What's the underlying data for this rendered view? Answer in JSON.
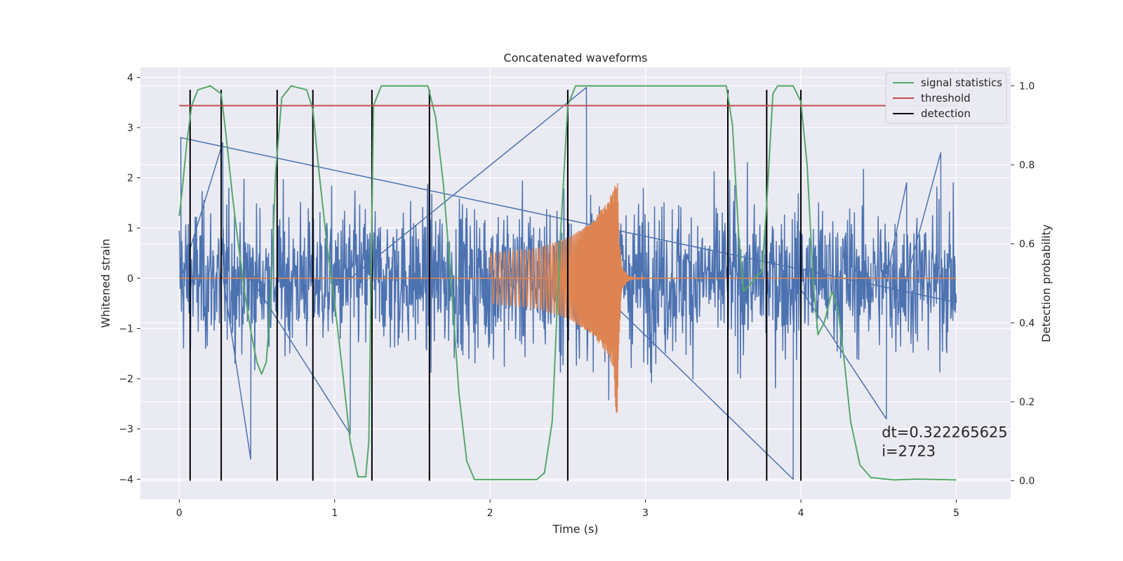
{
  "chart_data": {
    "type": "line",
    "title": "Concatenated waveforms",
    "xlabel": "Time (s)",
    "ylabel": "Whitened strain",
    "y2label": "Detection probability",
    "xlim": [
      -0.25,
      5.35
    ],
    "ylim": [
      -4.4,
      4.2
    ],
    "y2lim": [
      -0.047,
      1.047
    ],
    "xticks": [
      0,
      1,
      2,
      3,
      4,
      5
    ],
    "xtick_labels": [
      "0",
      "1",
      "2",
      "3",
      "4",
      "5"
    ],
    "yticks": [
      4,
      3,
      2,
      1,
      0,
      -1,
      -2,
      -3,
      -4
    ],
    "ytick_labels": [
      "4",
      "3",
      "2",
      "1",
      "0",
      "−1",
      "−2",
      "−3",
      "−4"
    ],
    "y2ticks": [
      1.0,
      0.8,
      0.6,
      0.4,
      0.2,
      0.0
    ],
    "y2tick_labels": [
      "1.0",
      "0.8",
      "0.6",
      "0.4",
      "0.2",
      "0.0"
    ],
    "grid": true,
    "legend_position": "top-right",
    "legend": [
      {
        "label": "signal statistics",
        "color": "#55a868"
      },
      {
        "label": "threshold",
        "color": "#c44e52"
      },
      {
        "label": "detection",
        "color": "#000000"
      }
    ],
    "series": [
      {
        "name": "",
        "axis": "left",
        "color": "#4c72b0",
        "kind": "noise",
        "x_range": [
          0,
          5
        ],
        "envelope_amplitude": [
          [
            0,
            1.4
          ],
          [
            1,
            1.4
          ],
          [
            2.5,
            1.5
          ],
          [
            3,
            1.5
          ],
          [
            4,
            1.4
          ],
          [
            5,
            1.4
          ]
        ],
        "peaks": [
          [
            0.01,
            2.8
          ],
          [
            0.28,
            2.7
          ],
          [
            0.46,
            -3.6
          ],
          [
            1.1,
            -3.1
          ],
          [
            2.62,
            3.8
          ],
          [
            3.95,
            -4.0
          ],
          [
            4.55,
            -2.8
          ],
          [
            4.68,
            1.9
          ],
          [
            4.9,
            2.5
          ]
        ]
      },
      {
        "name": "",
        "axis": "left",
        "color": "#dd8452",
        "kind": "chirp",
        "x_range": [
          2.0,
          3.0
        ],
        "amplitude_points": [
          [
            2.0,
            0.5
          ],
          [
            2.3,
            0.6
          ],
          [
            2.5,
            0.8
          ],
          [
            2.65,
            1.1
          ],
          [
            2.75,
            1.5
          ],
          [
            2.82,
            1.95
          ],
          [
            2.83,
            0.8
          ],
          [
            2.85,
            0.2
          ],
          [
            2.9,
            0.03
          ],
          [
            3.0,
            0.0
          ]
        ],
        "peak_min": -2.9
      },
      {
        "name": "signal statistics",
        "axis": "right",
        "color": "#55a868",
        "points": [
          [
            0.0,
            0.67
          ],
          [
            0.02,
            0.74
          ],
          [
            0.05,
            0.86
          ],
          [
            0.08,
            0.95
          ],
          [
            0.12,
            0.99
          ],
          [
            0.2,
            1.0
          ],
          [
            0.27,
            0.98
          ],
          [
            0.3,
            0.88
          ],
          [
            0.34,
            0.73
          ],
          [
            0.38,
            0.6
          ],
          [
            0.42,
            0.48
          ],
          [
            0.46,
            0.38
          ],
          [
            0.5,
            0.3
          ],
          [
            0.53,
            0.27
          ],
          [
            0.56,
            0.3
          ],
          [
            0.59,
            0.46
          ],
          [
            0.62,
            0.78
          ],
          [
            0.66,
            0.97
          ],
          [
            0.72,
            1.0
          ],
          [
            0.82,
            0.99
          ],
          [
            0.86,
            0.94
          ],
          [
            0.9,
            0.78
          ],
          [
            0.95,
            0.6
          ],
          [
            1.0,
            0.45
          ],
          [
            1.05,
            0.28
          ],
          [
            1.1,
            0.1
          ],
          [
            1.15,
            0.01
          ],
          [
            1.2,
            0.01
          ],
          [
            1.22,
            0.1
          ],
          [
            1.25,
            0.95
          ],
          [
            1.3,
            1.0
          ],
          [
            1.6,
            1.0
          ],
          [
            1.65,
            0.92
          ],
          [
            1.7,
            0.75
          ],
          [
            1.75,
            0.5
          ],
          [
            1.8,
            0.22
          ],
          [
            1.85,
            0.05
          ],
          [
            1.9,
            0.003
          ],
          [
            2.3,
            0.003
          ],
          [
            2.35,
            0.02
          ],
          [
            2.4,
            0.15
          ],
          [
            2.45,
            0.6
          ],
          [
            2.5,
            0.95
          ],
          [
            2.55,
            1.0
          ],
          [
            3.52,
            1.0
          ],
          [
            3.56,
            0.9
          ],
          [
            3.6,
            0.62
          ],
          [
            3.63,
            0.48
          ],
          [
            3.68,
            0.5
          ],
          [
            3.72,
            0.52
          ],
          [
            3.75,
            0.53
          ],
          [
            3.78,
            0.7
          ],
          [
            3.82,
            0.98
          ],
          [
            3.85,
            1.0
          ],
          [
            3.95,
            1.0
          ],
          [
            4.0,
            0.96
          ],
          [
            4.04,
            0.8
          ],
          [
            4.08,
            0.5
          ],
          [
            4.11,
            0.37
          ],
          [
            4.15,
            0.4
          ],
          [
            4.2,
            0.48
          ],
          [
            4.24,
            0.43
          ],
          [
            4.28,
            0.3
          ],
          [
            4.32,
            0.15
          ],
          [
            4.38,
            0.04
          ],
          [
            4.45,
            0.008
          ],
          [
            4.6,
            0.002
          ],
          [
            4.75,
            0.004
          ],
          [
            5.0,
            0.002
          ]
        ]
      },
      {
        "name": "threshold",
        "axis": "right",
        "color": "#c44e52",
        "points": [
          [
            0,
            0.95
          ],
          [
            5,
            0.95
          ]
        ]
      }
    ],
    "detections": [
      0.07,
      0.27,
      0.63,
      0.86,
      1.24,
      1.61,
      2.5,
      3.53,
      3.78,
      4.0
    ],
    "detection_range": [
      0.0,
      0.99
    ],
    "annotations": [
      {
        "text": "dt=0.322265625",
        "x": 4.52,
        "y": 0.11
      },
      {
        "text": " i=2723",
        "x": 4.52,
        "y": 0.062
      }
    ]
  }
}
